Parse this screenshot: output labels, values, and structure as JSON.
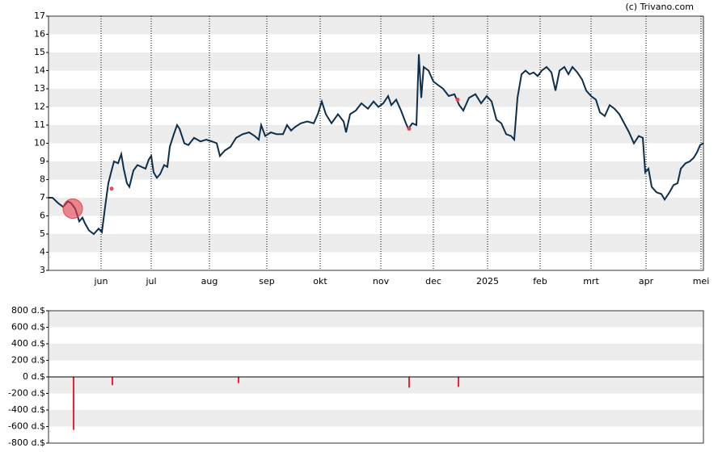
{
  "chart_data": [
    {
      "type": "line",
      "credit": "(c) Trivano.com",
      "xlim": [
        0,
        810
      ],
      "ylim": [
        3,
        17
      ],
      "yticks": [
        3,
        4,
        5,
        6,
        7,
        8,
        9,
        10,
        11,
        12,
        13,
        14,
        15,
        16,
        17
      ],
      "xticks": [
        {
          "value": 65,
          "label": "jun"
        },
        {
          "value": 127,
          "label": "jul"
        },
        {
          "value": 199,
          "label": "aug"
        },
        {
          "value": 270,
          "label": "sep"
        },
        {
          "value": 336,
          "label": "okt"
        },
        {
          "value": 411,
          "label": "nov"
        },
        {
          "value": 476,
          "label": "dec"
        },
        {
          "value": 543,
          "label": "2025"
        },
        {
          "value": 608,
          "label": "feb"
        },
        {
          "value": 671,
          "label": "mrt"
        },
        {
          "value": 739,
          "label": "apr"
        },
        {
          "value": 807,
          "label": "mei"
        }
      ],
      "grid": true,
      "series": [
        {
          "color": "#0d2f4a",
          "x": [
            0,
            5,
            12,
            18,
            24,
            28,
            33,
            38,
            42,
            45,
            50,
            56,
            62,
            66,
            70,
            74,
            78,
            81,
            86,
            90,
            93,
            97,
            100,
            105,
            110,
            115,
            120,
            124,
            127,
            130,
            134,
            138,
            143,
            147,
            150,
            155,
            159,
            162,
            168,
            173,
            180,
            188,
            195,
            202,
            208,
            212,
            218,
            225,
            232,
            240,
            248,
            255,
            260,
            263,
            268,
            275,
            282,
            290,
            295,
            300,
            305,
            312,
            320,
            328,
            333,
            338,
            343,
            350,
            358,
            365,
            368,
            373,
            380,
            387,
            395,
            402,
            408,
            414,
            420,
            424,
            430,
            436,
            442,
            445,
            450,
            455,
            458,
            461,
            464,
            470,
            476,
            482,
            488,
            495,
            502,
            508,
            513,
            520,
            528,
            535,
            542,
            548,
            554,
            560,
            566,
            572,
            576,
            580,
            585,
            590,
            595,
            600,
            605,
            610,
            616,
            622,
            627,
            632,
            638,
            643,
            648,
            654,
            660,
            665,
            671,
            677,
            682,
            688,
            694,
            700,
            706,
            712,
            718,
            724,
            730,
            735,
            738,
            742,
            746,
            752,
            758,
            762,
            768,
            773,
            778,
            782,
            788,
            793,
            798,
            802,
            806,
            810
          ],
          "values": [
            7.0,
            7.0,
            6.7,
            6.5,
            6.8,
            6.7,
            6.4,
            5.7,
            5.9,
            5.6,
            5.2,
            5.0,
            5.3,
            5.1,
            6.5,
            7.8,
            8.5,
            9.0,
            8.9,
            9.4,
            8.6,
            7.8,
            7.6,
            8.5,
            8.8,
            8.7,
            8.6,
            9.1,
            9.3,
            8.4,
            8.1,
            8.3,
            8.8,
            8.7,
            9.8,
            10.5,
            11.0,
            10.8,
            10.0,
            9.9,
            10.3,
            10.1,
            10.2,
            10.1,
            10.0,
            9.3,
            9.6,
            9.8,
            10.3,
            10.5,
            10.6,
            10.4,
            10.2,
            11.0,
            10.4,
            10.6,
            10.5,
            10.5,
            11.0,
            10.7,
            10.9,
            11.1,
            11.2,
            11.1,
            11.6,
            12.3,
            11.6,
            11.1,
            11.6,
            11.2,
            10.6,
            11.6,
            11.8,
            12.2,
            11.9,
            12.3,
            12.0,
            12.2,
            12.6,
            12.1,
            12.4,
            11.8,
            11.1,
            10.8,
            11.1,
            11.0,
            14.9,
            12.5,
            14.2,
            14.0,
            13.4,
            13.2,
            13.0,
            12.6,
            12.7,
            12.1,
            11.8,
            12.5,
            12.7,
            12.2,
            12.6,
            12.3,
            11.3,
            11.1,
            10.5,
            10.4,
            10.2,
            12.5,
            13.8,
            14.0,
            13.8,
            13.9,
            13.7,
            14.0,
            14.2,
            13.9,
            12.9,
            14.0,
            14.2,
            13.8,
            14.2,
            13.9,
            13.5,
            12.9,
            12.6,
            12.4,
            11.7,
            11.5,
            12.1,
            11.9,
            11.6,
            11.1,
            10.6,
            10.0,
            10.4,
            10.3,
            8.4,
            8.6,
            7.6,
            7.3,
            7.2,
            6.9,
            7.3,
            7.7,
            7.8,
            8.6,
            8.9,
            9.0,
            9.2,
            9.5,
            9.9,
            10.0
          ]
        },
        {
          "color": "#e8404f",
          "marker": true,
          "x": [
            30,
            78,
            446,
            506
          ],
          "values": [
            6.4,
            7.5,
            10.8,
            12.4
          ],
          "sizes": [
            12,
            2,
            2,
            2
          ]
        }
      ]
    },
    {
      "type": "bar",
      "xlim": [
        0,
        810
      ],
      "ylim": [
        -800,
        800
      ],
      "yticks": [
        {
          "value": -800,
          "label": "-800 d.$"
        },
        {
          "value": -600,
          "label": "-600 d.$"
        },
        {
          "value": -400,
          "label": "-400 d.$"
        },
        {
          "value": -200,
          "label": "-200 d.$"
        },
        {
          "value": 0,
          "label": "0 d.$"
        },
        {
          "value": 200,
          "label": "200 d.$"
        },
        {
          "value": 400,
          "label": "400 d.$"
        },
        {
          "value": 600,
          "label": "600 d.$"
        },
        {
          "value": 800,
          "label": "800 d.$"
        }
      ],
      "grid": true,
      "color": "#e8233a",
      "x": [
        31,
        79,
        235,
        446,
        507
      ],
      "values": [
        -640,
        -100,
        -75,
        -130,
        -120
      ]
    }
  ]
}
